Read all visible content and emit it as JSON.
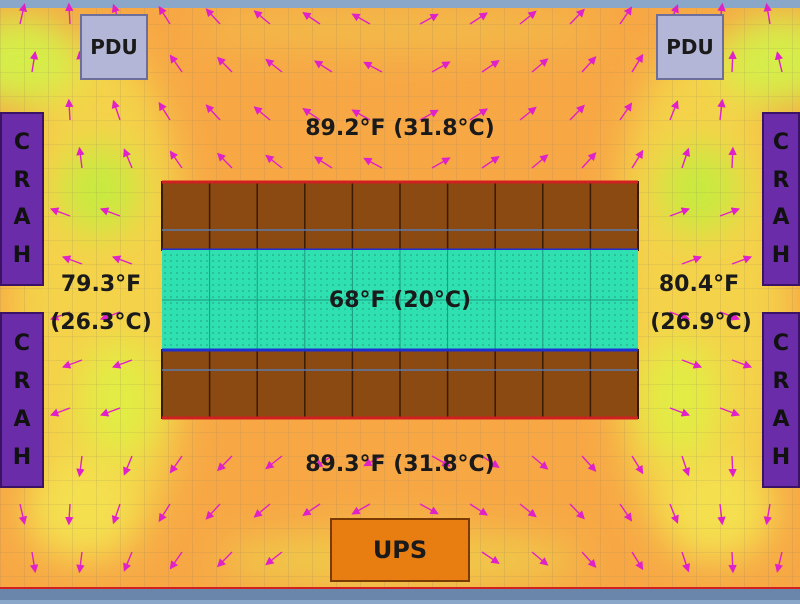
{
  "units": {
    "pdu_left": "PDU",
    "pdu_right": "PDU",
    "ups": "UPS",
    "crah_letters": [
      "C",
      "R",
      "A",
      "H"
    ]
  },
  "temperatures": {
    "top": "89.2°F  (31.8°C)",
    "bottom": "89.3°F  (31.8°C)",
    "center": "68°F  (20°C)",
    "left_f": "79.3°F",
    "left_c": "(26.3°C)",
    "right_f": "80.4°F",
    "right_c": "(26.9°C)"
  },
  "colors": {
    "hot": "#f7a845",
    "warm": "#f4d24a",
    "cool": "#d6ee4a",
    "cold_aisle": "#2fe0b0",
    "rack": "#8a4a12",
    "arrow": "#e020c8",
    "crah": "#6a2ca8"
  }
}
